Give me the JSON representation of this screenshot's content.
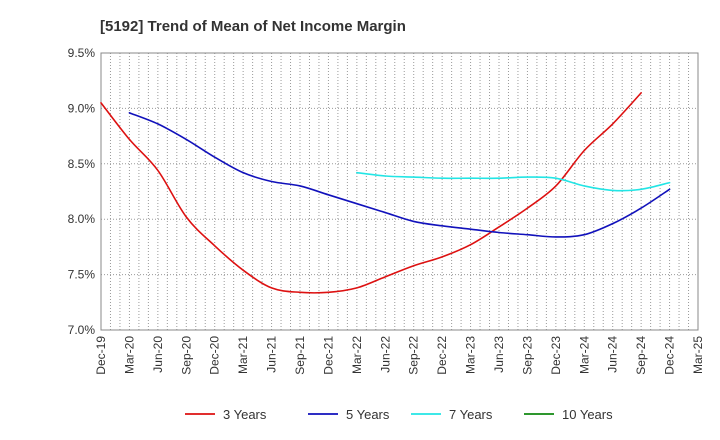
{
  "chart_data": {
    "type": "line",
    "title": "[5192]  Trend of Mean of Net Income Margin",
    "xlabel": "",
    "ylabel": "",
    "x_categories": [
      "Dec-19",
      "Mar-20",
      "Jun-20",
      "Sep-20",
      "Dec-20",
      "Mar-21",
      "Jun-21",
      "Sep-21",
      "Dec-21",
      "Mar-22",
      "Jun-22",
      "Sep-22",
      "Dec-22",
      "Mar-23",
      "Jun-23",
      "Sep-23",
      "Dec-23",
      "Mar-24",
      "Jun-24",
      "Sep-24",
      "Dec-24",
      "Mar-25"
    ],
    "y_ticks": [
      "7.0%",
      "7.5%",
      "8.0%",
      "8.5%",
      "9.0%",
      "9.5%"
    ],
    "ylim": [
      7.0,
      9.5
    ],
    "grid": true,
    "legend_position": "bottom",
    "series": [
      {
        "name": "3 Years",
        "color": "#dd1111",
        "start_index": 0,
        "values": [
          9.05,
          8.72,
          8.44,
          8.02,
          7.76,
          7.54,
          7.38,
          7.34,
          7.34,
          7.38,
          7.48,
          7.58,
          7.66,
          7.77,
          7.93,
          8.1,
          8.3,
          8.62,
          8.86,
          9.14
        ]
      },
      {
        "name": "5 Years",
        "color": "#1111bb",
        "start_index": 1,
        "values": [
          8.96,
          8.86,
          8.72,
          8.56,
          8.42,
          8.34,
          8.3,
          8.22,
          8.14,
          8.06,
          7.98,
          7.94,
          7.91,
          7.88,
          7.86,
          7.84,
          7.86,
          7.96,
          8.1,
          8.27
        ]
      },
      {
        "name": "7 Years",
        "color": "#22e5e5",
        "start_index": 9,
        "values": [
          8.42,
          8.39,
          8.38,
          8.37,
          8.37,
          8.37,
          8.38,
          8.37,
          8.3,
          8.26,
          8.27,
          8.33
        ]
      },
      {
        "name": "10 Years",
        "color": "#118811",
        "start_index": 0,
        "values": []
      }
    ]
  }
}
